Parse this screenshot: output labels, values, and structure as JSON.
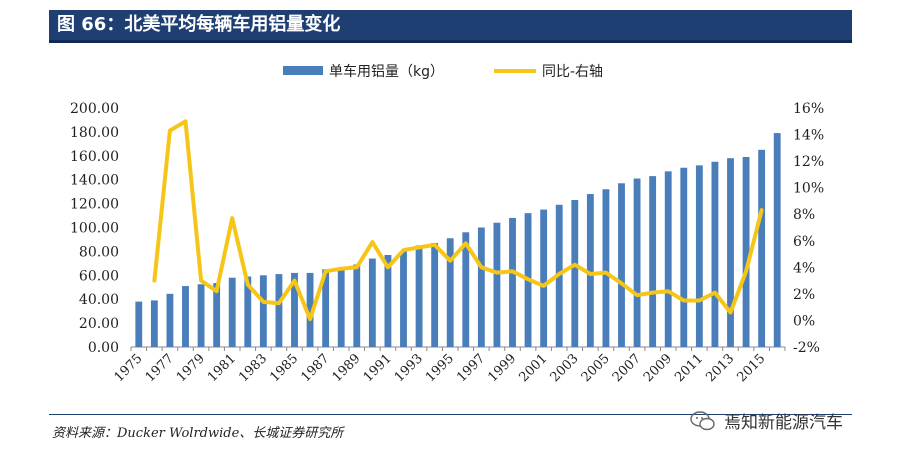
{
  "header": {
    "title": "图 66：北美平均每辆车用铝量变化"
  },
  "footer": {
    "source": "资料来源：Ducker Wolrdwide、长城证券研究所",
    "watermark": "焉知新能源汽车"
  },
  "colors": {
    "bar": "#4a7ebb",
    "line": "#f5c518",
    "title_bg": "#1f3f73"
  },
  "chart_data": {
    "type": "bar+line",
    "legend": {
      "placement": "top",
      "entries": [
        "单车用铝量（kg）",
        "同比-右轴"
      ]
    },
    "x_tick_labels": [
      "1975",
      "1977",
      "1979",
      "1981",
      "1983",
      "1985",
      "1987",
      "1989",
      "1991",
      "1993",
      "1995",
      "1997",
      "1999",
      "2001",
      "2003",
      "2005",
      "2007",
      "2009",
      "2011",
      "2013",
      "2015"
    ],
    "left_axis": {
      "ylim": [
        0,
        200
      ],
      "ticks": [
        "0.00",
        "20.00",
        "40.00",
        "60.00",
        "80.00",
        "100.00",
        "120.00",
        "140.00",
        "160.00",
        "180.00",
        "200.00"
      ]
    },
    "right_axis": {
      "ylim": [
        -2,
        16
      ],
      "ticks": [
        "-2%",
        "0%",
        "2%",
        "4%",
        "6%",
        "8%",
        "10%",
        "12%",
        "14%",
        "16%"
      ]
    },
    "years": [
      1975,
      1976,
      1977,
      1978,
      1979,
      1980,
      1981,
      1982,
      1983,
      1984,
      1985,
      1986,
      1987,
      1988,
      1989,
      1990,
      1991,
      1992,
      1993,
      1994,
      1995,
      1996,
      1997,
      1998,
      1999,
      2000,
      2001,
      2002,
      2003,
      2004,
      2005,
      2006,
      2007,
      2008,
      2009,
      2010,
      2011,
      2012,
      2013,
      2014,
      2015,
      2016
    ],
    "series": [
      {
        "name": "单车用铝量（kg）",
        "type": "bar",
        "axis": "left",
        "values": [
          38,
          39,
          44.5,
          51,
          52.5,
          53.5,
          58,
          59,
          60,
          61,
          62,
          62,
          65,
          66,
          69,
          74,
          77,
          80,
          85,
          87,
          91,
          96,
          100,
          104,
          108,
          112,
          115,
          119,
          123,
          128,
          132,
          137,
          141,
          143,
          147,
          150,
          152,
          155,
          158,
          159,
          165,
          179
        ]
      },
      {
        "name": "同比-右轴",
        "type": "line",
        "axis": "right",
        "values": [
          null,
          3.0,
          14.3,
          15.0,
          3.0,
          2.2,
          7.7,
          2.7,
          1.4,
          1.3,
          3.0,
          0.1,
          3.7,
          3.9,
          4.0,
          5.9,
          4.0,
          5.3,
          5.5,
          5.7,
          4.5,
          5.8,
          4.0,
          3.6,
          3.7,
          3.1,
          2.6,
          3.5,
          4.2,
          3.5,
          3.6,
          2.8,
          1.9,
          2.1,
          2.2,
          1.5,
          1.5,
          2.1,
          0.6,
          3.7,
          8.3,
          null
        ]
      }
    ]
  }
}
